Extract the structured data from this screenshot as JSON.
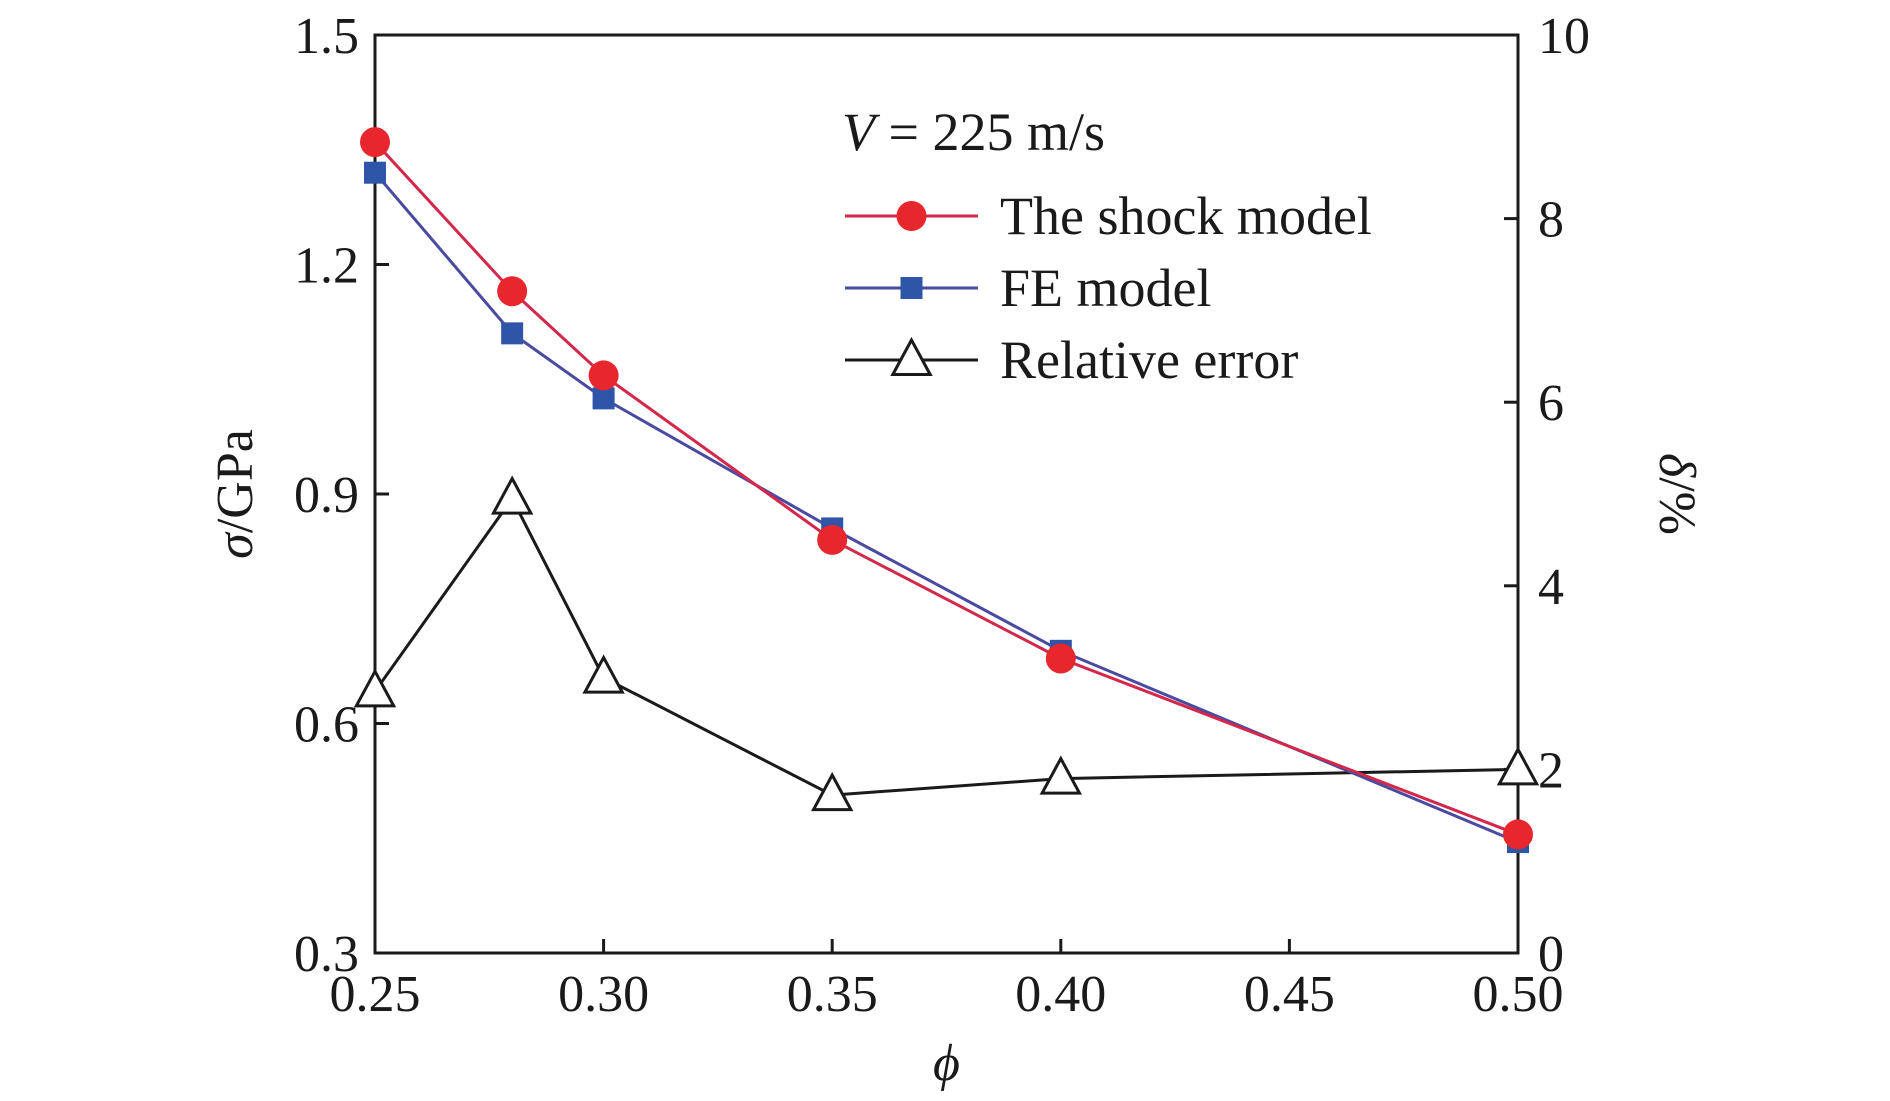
{
  "chart_data": {
    "type": "line",
    "annotation": {
      "var": "V",
      "rest": " = 225 m/s"
    },
    "xlabel": "ϕ",
    "ylabel": {
      "sym": "σ",
      "unit": "/GPa"
    },
    "y2label": {
      "sym": "δ",
      "unit": "/%"
    },
    "xlim": [
      0.25,
      0.5
    ],
    "ylim": [
      0.3,
      1.5
    ],
    "y2lim": [
      0,
      10
    ],
    "xticks": [
      "0.25",
      "0.30",
      "0.35",
      "0.40",
      "0.45",
      "0.50"
    ],
    "yticks": [
      "0.3",
      "0.6",
      "0.9",
      "1.2",
      "1.5"
    ],
    "y2ticks": [
      "0",
      "2",
      "4",
      "6",
      "8",
      "10"
    ],
    "grid": false,
    "legend_position": "top-right",
    "series": [
      {
        "name": "The shock model",
        "axis": "left",
        "color": "#e8262d",
        "line_color": "#d2284b",
        "marker": "circle",
        "x": [
          0.25,
          0.28,
          0.3,
          0.35,
          0.4,
          0.5
        ],
        "y": [
          1.36,
          1.165,
          1.055,
          0.84,
          0.685,
          0.455
        ]
      },
      {
        "name": "FE model",
        "axis": "left",
        "color": "#2e55a8",
        "line_color": "#4a4aa0",
        "marker": "square",
        "x": [
          0.25,
          0.28,
          0.3,
          0.35,
          0.4,
          0.5
        ],
        "y": [
          1.32,
          1.11,
          1.025,
          0.855,
          0.695,
          0.445
        ]
      },
      {
        "name": "Relative error",
        "axis": "right",
        "color": "#1a1a1a",
        "line_color": "#1a1a1a",
        "marker": "triangle-open",
        "x": [
          0.25,
          0.28,
          0.3,
          0.35,
          0.4,
          0.5
        ],
        "y": [
          2.85,
          4.95,
          3.0,
          1.72,
          1.9,
          2.0
        ]
      }
    ]
  }
}
